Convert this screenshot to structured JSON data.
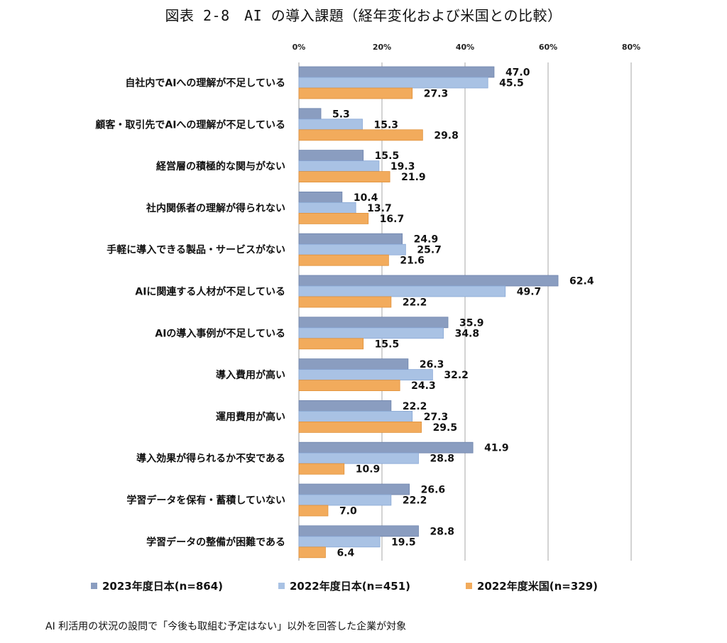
{
  "title": "図表 2-8　AI の導入課題（経年変化および米国との比較）",
  "footnote": "AI 利活用の状況の設問で「今後も取組む予定はない」以外を回答した企業が対象",
  "colors": {
    "series_2023_jp": "#8a9dc0",
    "series_2022_jp": "#a9c2e4",
    "series_2022_us": "#f2ab5c",
    "grid": "#c8c8c8"
  },
  "chart_data": {
    "type": "bar",
    "orientation": "horizontal",
    "xlim": [
      0,
      80
    ],
    "tick_values": [
      0,
      20,
      40,
      60,
      80
    ],
    "tick_labels": [
      "0%",
      "20%",
      "40%",
      "60%",
      "80%"
    ],
    "grid": true,
    "legend_position": "bottom",
    "categories": [
      "自社内でAIへの理解が不足している",
      "顧客・取引先でAIへの理解が不足している",
      "経営層の積極的な関与がない",
      "社内関係者の理解が得られない",
      "手軽に導入できる製品・サービスがない",
      "AIに関連する人材が不足している",
      "AIの導入事例が不足している",
      "導入費用が高い",
      "運用費用が高い",
      "導入効果が得られるか不安である",
      "学習データを保有・蓄積していない",
      "学習データの整備が困難である"
    ],
    "series": [
      {
        "name": "2023年度日本(n=864)",
        "values": [
          47.0,
          5.3,
          15.5,
          10.4,
          24.9,
          62.4,
          35.9,
          26.3,
          22.2,
          41.9,
          26.6,
          28.8
        ]
      },
      {
        "name": "2022年度日本(n=451)",
        "values": [
          45.5,
          15.3,
          19.3,
          13.7,
          25.7,
          49.7,
          34.8,
          32.2,
          27.3,
          28.8,
          22.2,
          19.5
        ]
      },
      {
        "name": "2022年度米国(n=329)",
        "values": [
          27.3,
          29.8,
          21.9,
          16.7,
          21.6,
          22.2,
          15.5,
          24.3,
          29.5,
          10.9,
          7.0,
          6.4
        ]
      }
    ]
  }
}
